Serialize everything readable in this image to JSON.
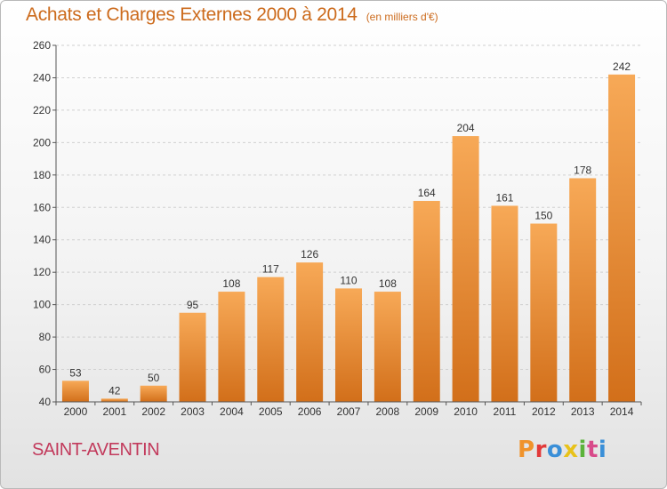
{
  "header": {
    "title": "Achats et Charges Externes 2000 à 2014",
    "subtitle": "(en milliers d'€)"
  },
  "place": "SAINT-AVENTIN",
  "brand": {
    "name": "Proxiti",
    "colors": [
      "#f0932b",
      "#e23a3a",
      "#3a8fd8",
      "#e8c21a",
      "#5bb33a",
      "#d84a8a",
      "#3a8fd8"
    ]
  },
  "colors": {
    "bar": "#f0923b",
    "bar_dark": "#d9741d",
    "axis": "#555555",
    "grid": "#d0d0d0",
    "title": "#cc6b1d",
    "place": "#c23a5c"
  },
  "chart_data": {
    "type": "bar",
    "categories": [
      "2000",
      "2001",
      "2002",
      "2003",
      "2004",
      "2005",
      "2006",
      "2007",
      "2008",
      "2009",
      "2010",
      "2011",
      "2012",
      "2013",
      "2014"
    ],
    "values": [
      53,
      42,
      50,
      95,
      108,
      117,
      126,
      110,
      108,
      164,
      204,
      161,
      150,
      178,
      242
    ],
    "ylim": [
      40,
      260
    ],
    "yticks": [
      40,
      60,
      80,
      100,
      120,
      140,
      160,
      180,
      200,
      220,
      240,
      260
    ],
    "grid": "horizontal dashed",
    "data_labels": true
  }
}
